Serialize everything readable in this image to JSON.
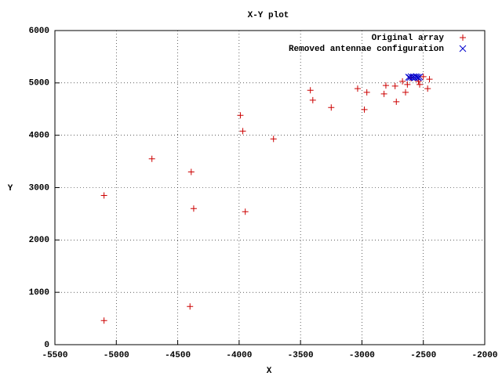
{
  "chart_data": {
    "type": "scatter",
    "title": "X-Y plot",
    "x_label": "X",
    "y_label": "Y",
    "xlim": [
      -5500,
      -2000
    ],
    "xticks": [
      -5500,
      -5000,
      -4500,
      -4000,
      -3500,
      -3000,
      -2500,
      -2000
    ],
    "ylim": [
      0,
      6000
    ],
    "yticks": [
      0,
      1000,
      2000,
      3000,
      4000,
      5000,
      6000
    ],
    "grid": true,
    "legend": "top-right",
    "series": [
      {
        "name": "Original array",
        "color": "#cc0000",
        "marker": "plus",
        "x": [
          -5100,
          -5100,
          -4710,
          -4400,
          -4390,
          -4370,
          -3990,
          -3970,
          -3950,
          -3720,
          -3420,
          -3400,
          -3250,
          -3035,
          -2980,
          -2960,
          -2820,
          -2805,
          -2730,
          -2720,
          -2670,
          -2645,
          -2630,
          -2600,
          -2540,
          -2500,
          -2465,
          -2450,
          -2530
        ],
        "y": [
          460,
          2850,
          3550,
          730,
          3300,
          2600,
          4380,
          4080,
          2540,
          3930,
          4860,
          4670,
          4530,
          4890,
          4490,
          4820,
          4790,
          4950,
          4940,
          4640,
          5030,
          4820,
          4970,
          5090,
          5030,
          5120,
          4890,
          5070,
          4970
        ]
      },
      {
        "name": "Removed antennae configuration",
        "color": "#0000cc",
        "marker": "cross",
        "x": [
          -2620,
          -2610,
          -2600,
          -2590,
          -2580,
          -2570,
          -2560,
          -2550,
          -2540,
          -2530
        ],
        "y": [
          5110,
          5100,
          5120,
          5105,
          5115,
          5100,
          5120,
          5110,
          5100,
          5115
        ]
      }
    ]
  }
}
